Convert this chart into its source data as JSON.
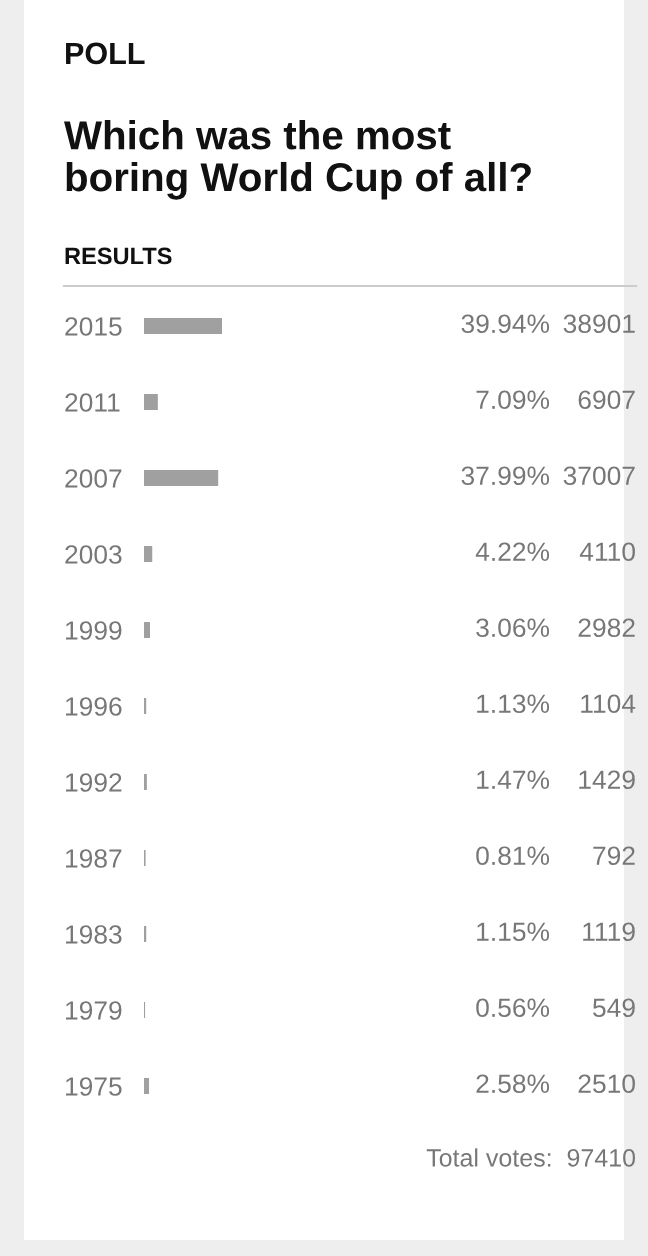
{
  "chart_data": {
    "type": "bar",
    "orientation": "horizontal",
    "title": "Which was the most\nboring World Cup of all?",
    "categories": [
      "2015",
      "2011",
      "2007",
      "2003",
      "1999",
      "1996",
      "1992",
      "1987",
      "1983",
      "1979",
      "1975"
    ],
    "values": [
      39.94,
      7.09,
      37.99,
      4.22,
      3.06,
      1.13,
      1.47,
      0.81,
      1.15,
      0.56,
      2.58
    ],
    "value_labels": [
      "39.94%",
      "7.09%",
      "37.99%",
      "4.22%",
      "3.06%",
      "1.13%",
      "1.47%",
      "0.81%",
      "1.15%",
      "0.56%",
      "2.58%"
    ],
    "color": "#a0a0a0",
    "annotations": [
      "POLL",
      "RESULTS",
      "38901",
      "6907",
      "37007",
      "4110",
      "2982",
      "1104",
      "1429",
      "792",
      "1119",
      "549",
      "2510",
      "Total votes:  97410"
    ]
  }
}
